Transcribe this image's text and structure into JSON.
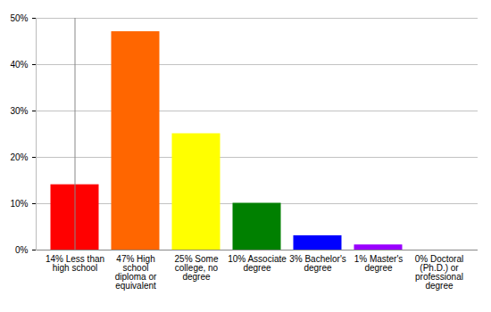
{
  "chart_data": {
    "type": "bar",
    "categories": [
      "14% Less than high school",
      "47% High school diploma or equivalent",
      "25% Some college, no degree",
      "10% Associate degree",
      "3% Bachelor's degree",
      "1% Master's degree",
      "0% Doctoral (Ph.D.) or professional degree"
    ],
    "values": [
      14,
      47,
      25,
      10,
      3,
      1,
      0
    ],
    "colors": [
      "#ff0000",
      "#ff6600",
      "#ffff00",
      "#008000",
      "#0000ff",
      "#9900ff",
      "#ff00ff"
    ],
    "ylim": [
      0,
      50
    ],
    "yticks": [
      {
        "value": 0,
        "label": "0%"
      },
      {
        "value": 10,
        "label": "10%"
      },
      {
        "value": 20,
        "label": "20%"
      },
      {
        "value": 30,
        "label": "30%"
      },
      {
        "value": 40,
        "label": "40%"
      },
      {
        "value": 50,
        "label": "50%"
      }
    ],
    "grid": true
  }
}
